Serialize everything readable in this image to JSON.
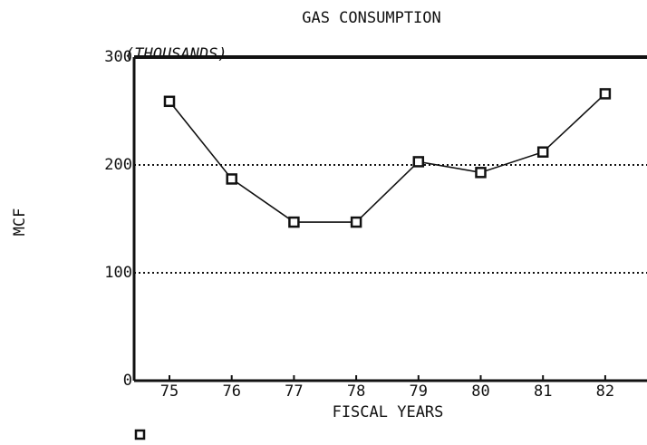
{
  "chart_data": {
    "type": "line",
    "title": "GAS CONSUMPTION",
    "annotation": "(THOUSANDS)",
    "xlabel": "FISCAL YEARS",
    "ylabel": "MCF",
    "categories": [
      "75",
      "76",
      "77",
      "78",
      "79",
      "80",
      "81",
      "82"
    ],
    "series": [
      {
        "name": "MCF",
        "color": "#111111",
        "values": [
          259,
          187,
          147,
          147,
          203,
          193,
          212,
          266
        ]
      }
    ],
    "ylim": [
      0,
      300
    ],
    "yticks": [
      0,
      100,
      200,
      300
    ],
    "grid": true
  }
}
